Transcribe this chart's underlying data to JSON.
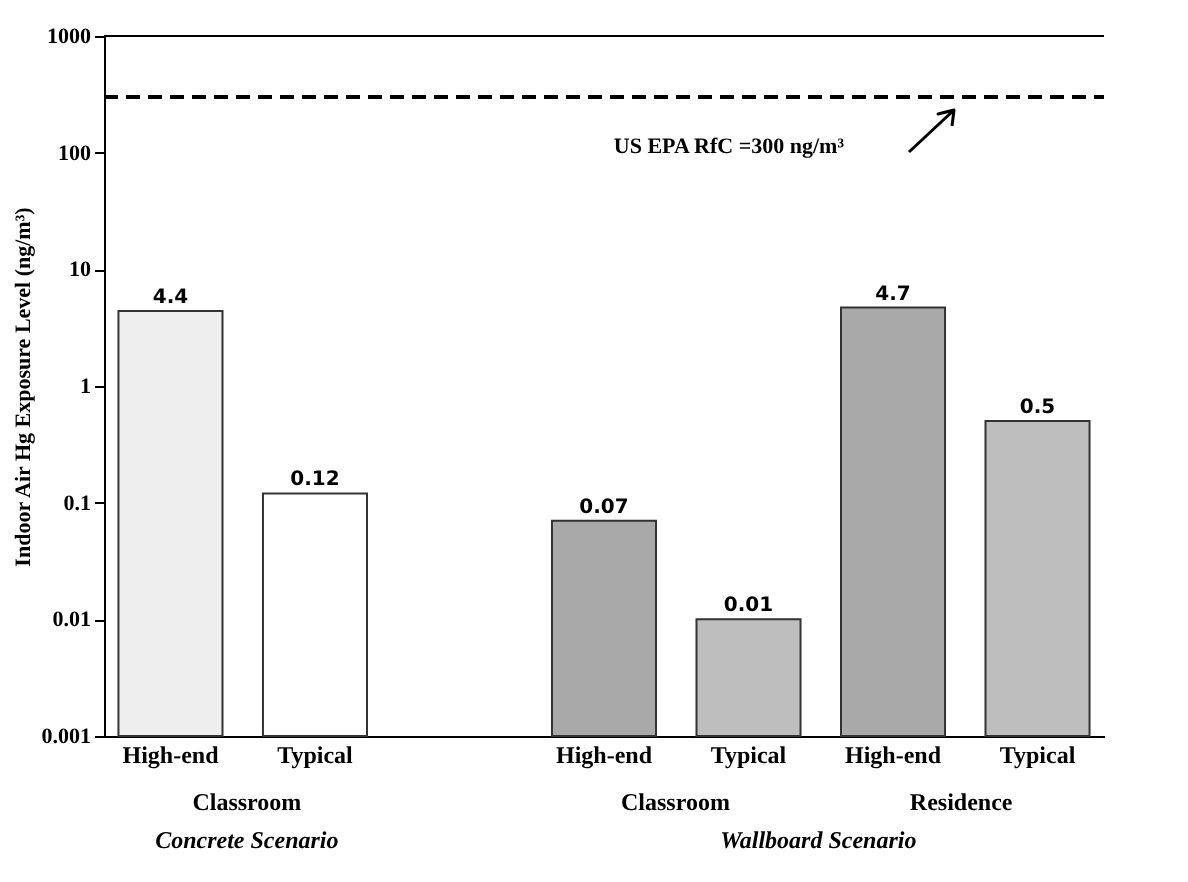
{
  "chart_data": {
    "type": "bar",
    "ylabel": "Indoor Air Hg Exposure Level (ng/m³)",
    "categories": [
      "High-end",
      "Typical",
      null,
      "High-end",
      "Typical",
      "High-end",
      "Typical"
    ],
    "values": [
      4.4,
      0.12,
      null,
      0.07,
      0.01,
      4.7,
      0.5
    ],
    "colors": [
      "#eeeeee",
      "#ffffff",
      null,
      "#a9a9a9",
      "#bebebe",
      "#a9a9a9",
      "#bebebe"
    ],
    "log": true,
    "ylim": [
      0.001,
      1000
    ],
    "yticks": [
      0.001,
      0.01,
      0.1,
      1,
      10,
      100,
      1000
    ],
    "data_labels": true,
    "grid": false,
    "ref_lines": [
      {
        "axis": "y",
        "value": 300,
        "label": "US EPA RfC =300 ng/m³",
        "line_style": "dashed",
        "color": "#000000"
      }
    ],
    "annotations": [
      "Classroom",
      "Classroom",
      "Residence",
      "Concrete Scenario",
      "Wallboard Scenario"
    ]
  }
}
